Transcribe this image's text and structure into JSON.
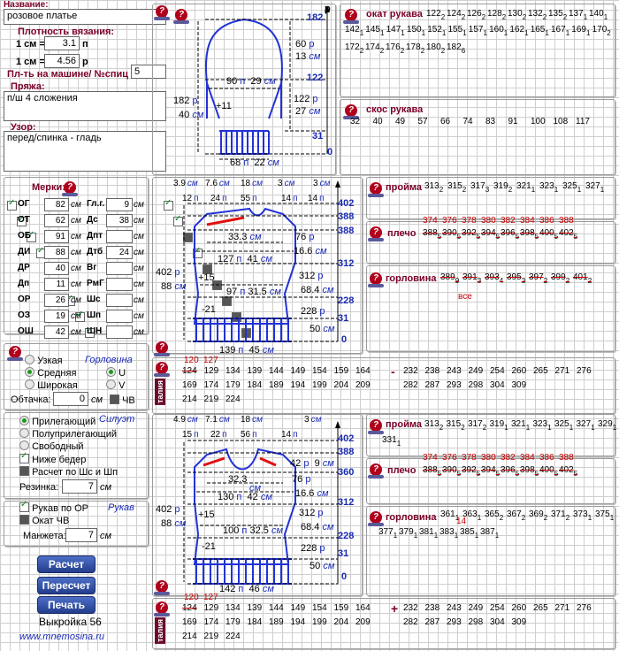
{
  "left": {
    "name_label": "Название:",
    "name_value": "розовое платье",
    "density_label": "Плотность вязания:",
    "density_row1_prefix": "1 см =",
    "density_row1_value": "3.1",
    "density_row1_unit": "п",
    "density_row2_prefix": "1 см =",
    "density_row2_value": "4.56",
    "density_row2_unit": "р",
    "machine_label": "Пл-ть на машине/ №спиц",
    "machine_value": "5",
    "yarn_label": "Пряжа:",
    "yarn_value": "п/ш 4 сложения",
    "pattern_label": "Узор:",
    "pattern_value": "перед/спинка - гладь"
  },
  "measures": {
    "title": "Мерки:",
    "unit": "см",
    "left": [
      {
        "label": "ОГ",
        "value": "82",
        "checked": true
      },
      {
        "label": "ОТ",
        "value": "62",
        "checked": true
      },
      {
        "label": "ОБ",
        "value": "91",
        "checked": true
      },
      {
        "label": "ДИ",
        "value": "88",
        "checked": true
      },
      {
        "label": "ДР",
        "value": "40",
        "checked": true
      },
      {
        "label": "Дп",
        "value": "11",
        "checked": true
      },
      {
        "label": "ОР",
        "value": "26",
        "checked": true
      },
      {
        "label": "ОЗ",
        "value": "19",
        "checked": true
      },
      {
        "label": "ОШ",
        "value": "42",
        "checked": true
      }
    ],
    "right": [
      {
        "label": "Гл.г.",
        "value": "9",
        "checked": true
      },
      {
        "label": "Дс",
        "value": "38",
        "checked": true
      },
      {
        "label": "Дпт",
        "value": "",
        "checked": false
      },
      {
        "label": "Дтб",
        "value": "24",
        "checked": true
      },
      {
        "label": "Вг",
        "value": "",
        "checked": false
      },
      {
        "label": "РмГ",
        "value": "",
        "checked": false
      },
      {
        "label": "Шс",
        "value": "",
        "checked": false
      },
      {
        "label": "Шп",
        "value": "",
        "checked": false
      },
      {
        "label": "ШН",
        "value": "",
        "checked": false
      }
    ]
  },
  "neckline": {
    "title": "Горловина",
    "opt1": "Узкая",
    "opt2": "Средняя",
    "opt3": "Широкая",
    "opt_u": "U",
    "opt_v": "V",
    "trim_label": "Обтачка:",
    "trim_value": "0",
    "trim_unit": "см",
    "chv": "ЧВ"
  },
  "silhouette": {
    "title": "Силуэт",
    "opt1": "Прилегающий",
    "opt2": "Полуприлегающий",
    "opt3": "Свободный",
    "below_hips": "Ниже бедер",
    "calc": "Расчет по Шс и Шп",
    "elastic_label": "Резинка:",
    "elastic_value": "7",
    "elastic_unit": "см"
  },
  "sleeve_opts": {
    "title": "Рукав",
    "by_or": "Рукав по ОР",
    "okat": "Окат ЧВ",
    "cuff_label": "Манжета:",
    "cuff_value": "7",
    "cuff_unit": "см"
  },
  "buttons": {
    "calc": "Расчет",
    "recalc": "Пересчет",
    "print": "Печать"
  },
  "footer": {
    "pattern_no": "Выкройка 56",
    "site": "www.mnemosina.ru"
  },
  "sleeve_diagram": {
    "top_rows": "182",
    "top_unit": "р",
    "cap_rows": "60",
    "cap_rows_unit": "р",
    "cap_cm": "13",
    "cap_cm_unit": "см",
    "mid_label": "122",
    "width_sts": "90",
    "width_sts_unit": "п",
    "width_cm": "29",
    "width_cm_unit": "см",
    "left_rows": "182",
    "left_rows_unit": "р",
    "left_cm": "40",
    "left_cm_unit": "см",
    "inc": "+11",
    "body_rows": "122",
    "body_rows_unit": "р",
    "body_cm": "27",
    "body_cm_unit": "см",
    "cuff_mark": "31",
    "zero": "0",
    "bottom_sts": "68",
    "bottom_sts_unit": "п",
    "bottom_cm": "22",
    "bottom_cm_unit": "см",
    "axis": "р"
  },
  "okat": {
    "title": "окат рукава",
    "rows": [
      [
        [
          "122",
          "2"
        ],
        [
          "124",
          "2"
        ],
        [
          "126",
          "2"
        ],
        [
          "128",
          "2"
        ],
        [
          "130",
          "2"
        ],
        [
          "132",
          "2"
        ],
        [
          "135",
          "2"
        ],
        [
          "137",
          "1"
        ],
        [
          "140",
          "1"
        ]
      ],
      [
        [
          "142",
          "1"
        ],
        [
          "145",
          "1"
        ],
        [
          "147",
          "1"
        ],
        [
          "150",
          "1"
        ],
        [
          "152",
          "1"
        ],
        [
          "155",
          "1"
        ],
        [
          "157",
          "1"
        ],
        [
          "160",
          "1"
        ],
        [
          "162",
          "1"
        ],
        [
          "165",
          "1"
        ],
        [
          "167",
          "1"
        ],
        [
          "169",
          "1"
        ],
        [
          "170",
          "2"
        ]
      ],
      [
        [
          "172",
          "2"
        ],
        [
          "174",
          "2"
        ],
        [
          "176",
          "2"
        ],
        [
          "178",
          "2"
        ],
        [
          "180",
          "2"
        ],
        [
          "182",
          "6"
        ]
      ]
    ]
  },
  "skos": {
    "title": "скос рукава",
    "values": [
      "32",
      "40",
      "49",
      "57",
      "66",
      "74",
      "83",
      "91",
      "100",
      "108",
      "117"
    ]
  },
  "back_diagram": {
    "top_cm": [
      "3.9",
      "7.6",
      "18",
      "3",
      "3"
    ],
    "top_cm_unit": "см",
    "top_sts": [
      "12",
      "24",
      "55",
      "14",
      "14"
    ],
    "top_sts_unit": "п",
    "right_marks": [
      "402",
      "388",
      "388",
      "312",
      "228",
      "31",
      "0"
    ],
    "shoulder_cm": "33.3",
    "shoulder_unit": "см",
    "armhole_rows": "76",
    "armhole_unit": "р",
    "armhole_cm": "16.6",
    "armhole_cm_unit": "см",
    "chest_sts": "127",
    "chest_cm": "41",
    "waist_sts": "97",
    "waist_cm": "31.5",
    "inc": "+15",
    "dec": "-21",
    "left_rows": "402",
    "left_rows_unit": "р",
    "left_cm": "88",
    "left_cm_unit": "см",
    "side_rows": "312",
    "side_cm": "68.4",
    "lower_rows": "228",
    "lower_cm": "50",
    "bottom_sts": "139",
    "bottom_cm": "45"
  },
  "front_diagram": {
    "top_cm": [
      "4.9",
      "7.1",
      "18",
      "3"
    ],
    "top_sts": [
      "15",
      "22",
      "56",
      "14"
    ],
    "right_marks": [
      "402",
      "388",
      "360",
      "312",
      "228",
      "31",
      "0"
    ],
    "shoulder_cm": "32.3",
    "neck_rows": "42",
    "neck_cm": "9",
    "armhole_rows": "76",
    "armhole_cm": "16.6",
    "chest_sts": "130",
    "chest_cm": "42",
    "waist_sts": "100",
    "waist_cm": "32.5",
    "inc": "+15",
    "dec": "-21",
    "left_rows": "402",
    "left_cm": "88",
    "side_rows": "312",
    "side_cm": "68.4",
    "lower_rows": "228",
    "lower_cm": "50",
    "bottom_sts": "142",
    "bottom_cm": "46"
  },
  "back_panels": {
    "proyma_title": "пройма",
    "proyma": [
      [
        "313",
        "2"
      ],
      [
        "315",
        "2"
      ],
      [
        "317",
        "3"
      ],
      [
        "319",
        "2"
      ],
      [
        "321",
        "1"
      ],
      [
        "323",
        "1"
      ],
      [
        "325",
        "1"
      ],
      [
        "327",
        "1"
      ]
    ],
    "plecho_title": "плечо",
    "plecho_red": [
      "374",
      "376",
      "378",
      "380",
      "382",
      "384",
      "386",
      "388"
    ],
    "plecho": [
      [
        "388",
        "5"
      ],
      [
        "390",
        "5"
      ],
      [
        "392",
        "5"
      ],
      [
        "394",
        "5"
      ],
      [
        "396",
        "5"
      ],
      [
        "398",
        "5"
      ],
      [
        "400",
        "5"
      ],
      [
        "402",
        "5"
      ]
    ],
    "gorlovina_title": "горловина",
    "gorlovina": [
      [
        "389",
        "9"
      ],
      [
        "391",
        "3"
      ],
      [
        "393",
        "4"
      ],
      [
        "395",
        "3"
      ],
      [
        "397",
        "2"
      ],
      [
        "399",
        "2"
      ],
      [
        "401",
        "2"
      ]
    ],
    "gorlovina_note": "все"
  },
  "front_panels": {
    "proyma_title": "пройма",
    "proyma": [
      [
        "313",
        "2"
      ],
      [
        "315",
        "2"
      ],
      [
        "317",
        "2"
      ],
      [
        "319",
        "1"
      ],
      [
        "321",
        "1"
      ],
      [
        "323",
        "1"
      ],
      [
        "325",
        "1"
      ],
      [
        "327",
        "1"
      ],
      [
        "329",
        "1"
      ]
    ],
    "proyma_extra": [
      "331",
      "1"
    ],
    "plecho_title": "плечо",
    "plecho_red": [
      "374",
      "376",
      "378",
      "380",
      "382",
      "384",
      "386",
      "388"
    ],
    "plecho": [
      [
        "388",
        "5"
      ],
      [
        "390",
        "5"
      ],
      [
        "392",
        "5"
      ],
      [
        "394",
        "5"
      ],
      [
        "396",
        "5"
      ],
      [
        "398",
        "5"
      ],
      [
        "400",
        "5"
      ],
      [
        "402",
        "5"
      ]
    ],
    "gorlovina_title": "горловина",
    "gorlovina_row1": [
      [
        "361",
        "1"
      ],
      [
        "363",
        "1"
      ],
      [
        "365",
        "2"
      ],
      [
        "367",
        "2"
      ],
      [
        "369",
        "2"
      ],
      [
        "371",
        "2"
      ],
      [
        "373",
        "1"
      ],
      [
        "375",
        "1"
      ]
    ],
    "gorlovina_row2": [
      [
        "377",
        "1"
      ],
      [
        "379",
        "1"
      ],
      [
        "381",
        "1"
      ],
      [
        "383",
        "1"
      ],
      [
        "385",
        "1"
      ],
      [
        "387",
        "1"
      ]
    ],
    "gorlovina_red": "14"
  },
  "waist_back": {
    "tag": "талия",
    "red": [
      "120",
      "127"
    ],
    "row1": [
      "124",
      "129",
      "134",
      "139",
      "144",
      "149",
      "154",
      "159",
      "164"
    ],
    "row1b": [
      "232",
      "238",
      "243",
      "249",
      "254",
      "260",
      "265",
      "271",
      "276"
    ],
    "row2": [
      "169",
      "174",
      "179",
      "184",
      "189",
      "194",
      "199",
      "204",
      "209"
    ],
    "row2b": [
      "282",
      "287",
      "293",
      "298",
      "304",
      "309"
    ],
    "row3": [
      "214",
      "219",
      "224"
    ],
    "minus": "-"
  },
  "waist_front": {
    "tag": "талия",
    "red": [
      "120",
      "127"
    ],
    "row1": [
      "124",
      "129",
      "134",
      "139",
      "144",
      "149",
      "154",
      "159",
      "164"
    ],
    "row1b": [
      "232",
      "238",
      "243",
      "249",
      "254",
      "260",
      "265",
      "271",
      "276"
    ],
    "row2": [
      "169",
      "174",
      "179",
      "184",
      "189",
      "194",
      "199",
      "204",
      "209"
    ],
    "row2b": [
      "282",
      "287",
      "293",
      "298",
      "304",
      "309"
    ],
    "row3": [
      "214",
      "219",
      "224"
    ],
    "plus": "+"
  },
  "help_glyph": "?"
}
